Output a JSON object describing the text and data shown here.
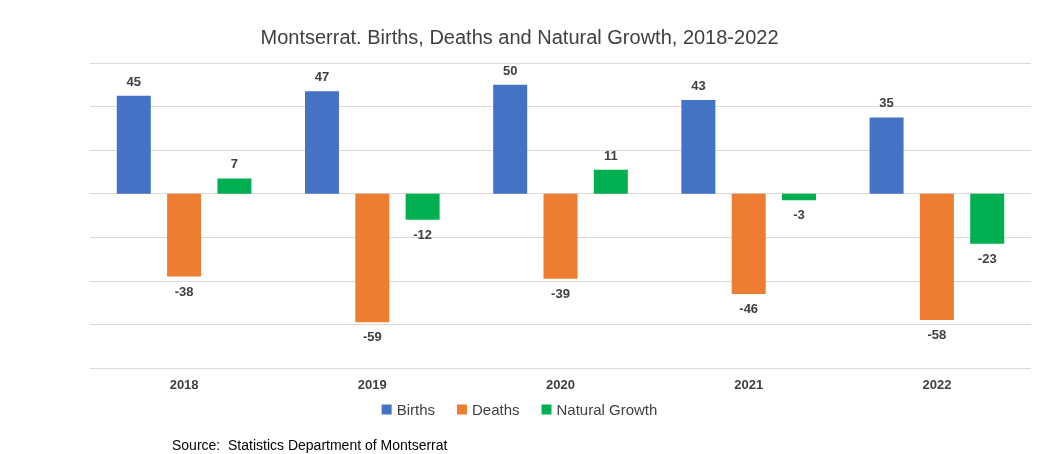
{
  "chart_data": {
    "type": "bar",
    "title": "Montserrat. Births, Deaths and Natural Growth, 2018-2022",
    "categories": [
      "2018",
      "2019",
      "2020",
      "2021",
      "2022"
    ],
    "series": [
      {
        "name": "Births",
        "color": "#4472c4",
        "values": [
          45,
          47,
          50,
          43,
          35
        ]
      },
      {
        "name": "Deaths",
        "color": "#ed7d31",
        "values": [
          -38,
          -59,
          -39,
          -46,
          -58
        ]
      },
      {
        "name": "Natural Growth",
        "color": "#00b050",
        "values": [
          7,
          -12,
          11,
          -3,
          -23
        ]
      }
    ],
    "ylim": [
      -80,
      60
    ],
    "yticks": [
      {
        "value": -80,
        "label": null
      },
      {
        "value": -60,
        "label": null
      },
      {
        "value": -40,
        "label": null
      },
      {
        "value": -20,
        "label": null
      },
      {
        "value": 0,
        "label": null
      },
      {
        "value": 20,
        "label": null
      },
      {
        "value": 40,
        "label": null
      },
      {
        "value": 60,
        "label": null
      }
    ],
    "grid": true,
    "legend": "bottom",
    "data_labels": true,
    "annotations": [
      "Source:  Statistics Department of Montserrat"
    ]
  }
}
